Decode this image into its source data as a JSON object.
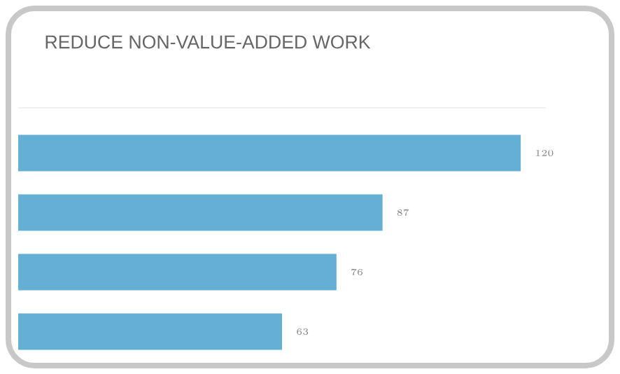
{
  "chart_data": {
    "type": "bar",
    "title": "REDUCE NON-VALUE-ADDED WORK",
    "orientation": "horizontal",
    "categories": [
      null,
      null,
      null,
      null
    ],
    "values": [
      120,
      87,
      76,
      63
    ],
    "color": "#64afd4",
    "data_labels": true
  }
}
